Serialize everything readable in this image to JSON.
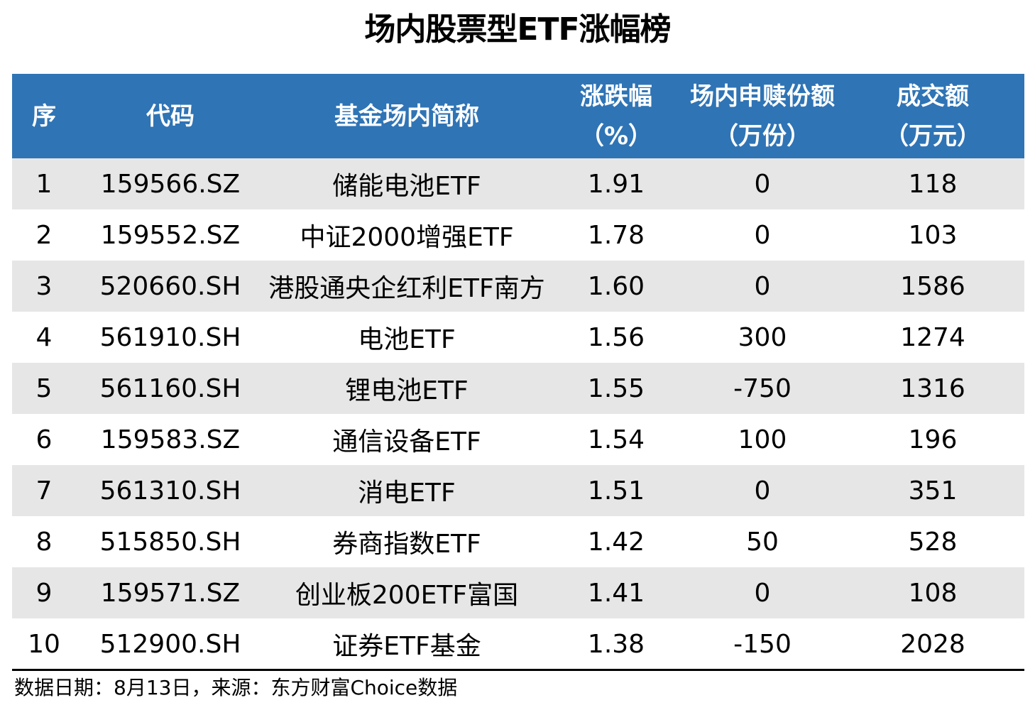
{
  "title": "场内股票型ETF涨幅榜",
  "colors": {
    "header_bg": "#2f74b5",
    "header_text": "#ffffff",
    "stripe_bg": "#e6e6e6",
    "text": "#000000"
  },
  "table": {
    "headers": [
      {
        "line1": "序",
        "line2": ""
      },
      {
        "line1": "代码",
        "line2": ""
      },
      {
        "line1": "基金场内简称",
        "line2": ""
      },
      {
        "line1": "涨跌幅",
        "line2": "（%）"
      },
      {
        "line1": "场内申赎份额",
        "line2": "（万份）"
      },
      {
        "line1": "成交额",
        "line2": "（万元）"
      }
    ],
    "rows": [
      {
        "rank": "1",
        "code": "159566.SZ",
        "name": "储能电池ETF",
        "change_pct": "1.91",
        "net_units": "0",
        "turnover": "118"
      },
      {
        "rank": "2",
        "code": "159552.SZ",
        "name": "中证2000增强ETF",
        "change_pct": "1.78",
        "net_units": "0",
        "turnover": "103"
      },
      {
        "rank": "3",
        "code": "520660.SH",
        "name": "港股通央企红利ETF南方",
        "change_pct": "1.60",
        "net_units": "0",
        "turnover": "1586"
      },
      {
        "rank": "4",
        "code": "561910.SH",
        "name": "电池ETF",
        "change_pct": "1.56",
        "net_units": "300",
        "turnover": "1274"
      },
      {
        "rank": "5",
        "code": "561160.SH",
        "name": "锂电池ETF",
        "change_pct": "1.55",
        "net_units": "-750",
        "turnover": "1316"
      },
      {
        "rank": "6",
        "code": "159583.SZ",
        "name": "通信设备ETF",
        "change_pct": "1.54",
        "net_units": "100",
        "turnover": "196"
      },
      {
        "rank": "7",
        "code": "561310.SH",
        "name": "消电ETF",
        "change_pct": "1.51",
        "net_units": "0",
        "turnover": "351"
      },
      {
        "rank": "8",
        "code": "515850.SH",
        "name": "券商指数ETF",
        "change_pct": "1.42",
        "net_units": "50",
        "turnover": "528"
      },
      {
        "rank": "9",
        "code": "159571.SZ",
        "name": "创业板200ETF富国",
        "change_pct": "1.41",
        "net_units": "0",
        "turnover": "108"
      },
      {
        "rank": "10",
        "code": "512900.SH",
        "name": "证券ETF基金",
        "change_pct": "1.38",
        "net_units": "-150",
        "turnover": "2028"
      }
    ]
  },
  "footer": {
    "note": "数据日期：8月13日，来源：东方财富Choice数据"
  }
}
